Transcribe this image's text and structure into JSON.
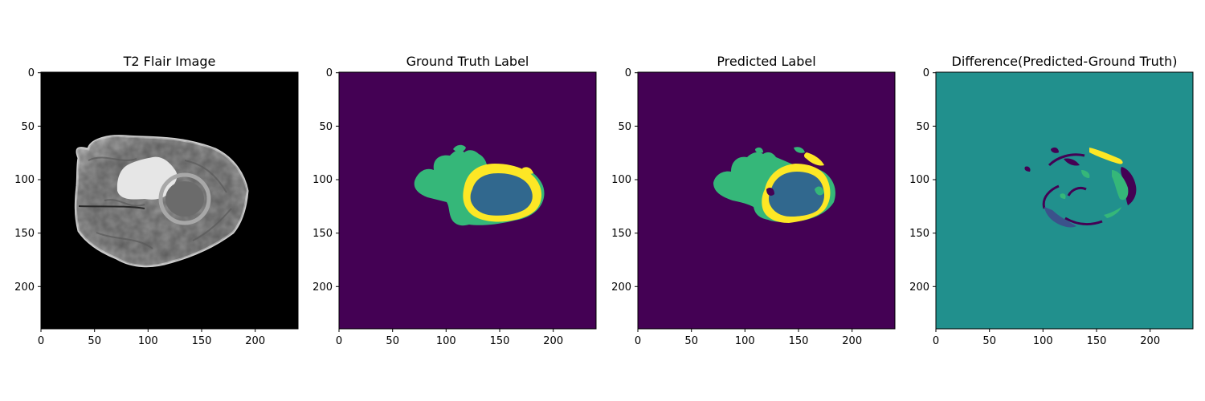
{
  "figure": {
    "background": "#ffffff",
    "axis_color": "#000000",
    "colors": {
      "background_black": "#000000",
      "viridis_dark": "#440154",
      "viridis_teal": "#21908d",
      "viridis_blue": "#31688e",
      "viridis_green": "#35b779",
      "viridis_yellow": "#fde725",
      "brain_light": "#c7c7c7",
      "brain_bright": "#ececec",
      "brain_mid": "#8e8e8e"
    },
    "x_ticks": [
      "0",
      "50",
      "100",
      "150",
      "200"
    ],
    "y_ticks": [
      "0",
      "50",
      "100",
      "150",
      "200"
    ],
    "panels": [
      {
        "title": "T2 Flair Image",
        "kind": "mri",
        "colormap": "gray"
      },
      {
        "title": "Ground Truth Label",
        "kind": "gt",
        "colormap": "viridis"
      },
      {
        "title": "Predicted Label",
        "kind": "pred",
        "colormap": "viridis"
      },
      {
        "title": "Difference(Predicted-Ground Truth)",
        "kind": "diff",
        "colormap": "viridis"
      }
    ]
  }
}
